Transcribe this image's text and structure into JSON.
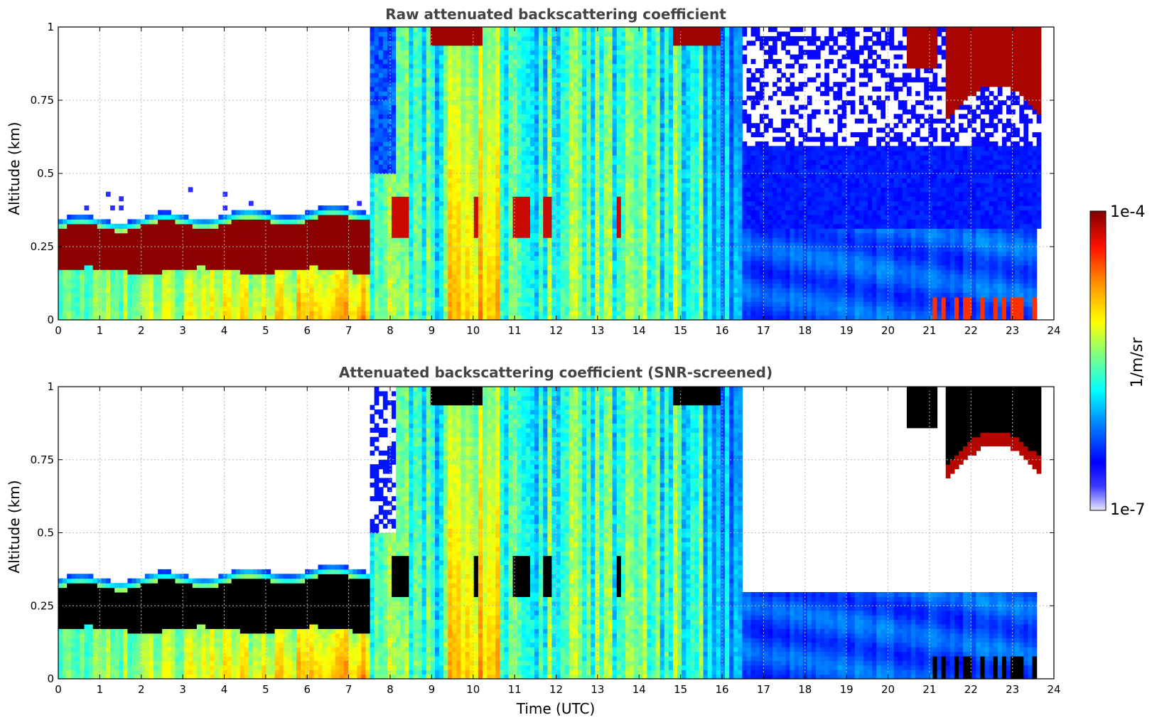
{
  "chart_data": [
    {
      "type": "heatmap",
      "title": "Raw attenuated backscattering coefficient",
      "xlabel": "",
      "ylabel": "Altitude (km)",
      "xlim": [
        0,
        24
      ],
      "ylim": [
        0,
        1
      ],
      "xticks": [
        "0",
        "1",
        "2",
        "3",
        "4",
        "5",
        "6",
        "7",
        "8",
        "9",
        "10",
        "11",
        "12",
        "13",
        "14",
        "15",
        "16",
        "17",
        "18",
        "19",
        "20",
        "21",
        "22",
        "23",
        "24"
      ],
      "yticks": [
        "0",
        "0.25",
        "0.5",
        "0.75",
        "1"
      ],
      "grid": true,
      "screened": false,
      "features": [
        {
          "name": "boundary-layer-cloud",
          "t_start": 0,
          "t_end": 7.5,
          "base_km": 0.18,
          "top_km": 0.32
        },
        {
          "name": "aerosol-column",
          "t_start": 7.5,
          "t_end": 16.5,
          "top_km": 1.0
        },
        {
          "name": "clear-low-signal",
          "t_start": 16.5,
          "t_end": 23.6,
          "top_km": 0.3
        },
        {
          "name": "elevated-cloud",
          "t_start": 22.2,
          "t_end": 23.6,
          "base_km": 0.7,
          "top_km": 1.0
        }
      ]
    },
    {
      "type": "heatmap",
      "title": "Attenuated backscattering coefficient (SNR-screened)",
      "xlabel": "Time (UTC)",
      "ylabel": "Altitude (km)",
      "xlim": [
        0,
        24
      ],
      "ylim": [
        0,
        1
      ],
      "xticks": [
        "0",
        "1",
        "2",
        "3",
        "4",
        "5",
        "6",
        "7",
        "8",
        "9",
        "10",
        "11",
        "12",
        "13",
        "14",
        "15",
        "16",
        "17",
        "18",
        "19",
        "20",
        "21",
        "22",
        "23",
        "24"
      ],
      "yticks": [
        "0",
        "0.25",
        "0.5",
        "0.75",
        "1"
      ],
      "grid": true,
      "screened": true,
      "features": [
        {
          "name": "boundary-layer-cloud",
          "t_start": 0,
          "t_end": 7.5,
          "base_km": 0.18,
          "top_km": 0.32
        },
        {
          "name": "aerosol-column",
          "t_start": 7.5,
          "t_end": 16.5,
          "top_km": 1.0
        },
        {
          "name": "clear-low-signal",
          "t_start": 16.5,
          "t_end": 23.6,
          "top_km": 0.3
        },
        {
          "name": "elevated-cloud",
          "t_start": 22.2,
          "t_end": 23.6,
          "base_km": 0.7,
          "top_km": 1.0
        }
      ]
    }
  ],
  "colorbar": {
    "label": "1/m/sr",
    "max_label": "1e-4",
    "min_label": "1e-7",
    "scale": "log",
    "range": [
      1e-07,
      0.0001
    ],
    "colors": [
      "#e8e8ff",
      "#0000ff",
      "#00bfff",
      "#00ffff",
      "#80ff80",
      "#ffff00",
      "#ff8000",
      "#ff0000",
      "#800000"
    ]
  }
}
